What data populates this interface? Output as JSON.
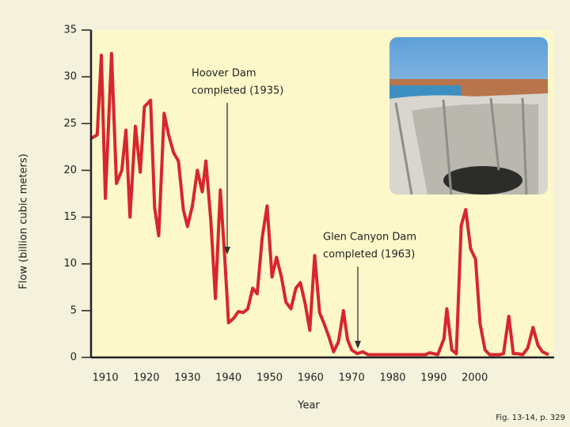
{
  "chart_data": {
    "type": "line",
    "y_label": "Flow (billion cubic meters)",
    "x_label": "Year",
    "source": "Fig. 13-14, p. 329",
    "annotations": [
      {
        "lines": [
          "Hoover Dam",
          "completed (1935)"
        ]
      },
      {
        "lines": [
          "Glen Canyon Dam",
          "completed (1963)"
        ]
      }
    ],
    "color": "#d7262e",
    "x": [
      1906.5,
      1908,
      1909,
      1910,
      1911.5,
      1912.7,
      1914,
      1915,
      1916,
      1917.3,
      1918.5,
      1919.5,
      1921,
      1922,
      1923,
      1924.3,
      1925.4,
      1926.6,
      1927.8,
      1929,
      1930,
      1931.2,
      1932.4,
      1933.6,
      1934.5,
      1935.7,
      1936.8,
      1938,
      1939,
      1940,
      1941.3,
      1942.4,
      1943.6,
      1944.7,
      1945.9,
      1947,
      1948.2,
      1949.4,
      1950.6,
      1951.7,
      1952.9,
      1954,
      1955.2,
      1956.4,
      1957.5,
      1958.7,
      1959.8,
      1961,
      1962.2,
      1963.3,
      1964.4,
      1965.6,
      1966.8,
      1968,
      1969,
      1970,
      1971.4,
      1972.7,
      1974,
      1980,
      1988,
      1989,
      1991,
      1992.5,
      1993.2,
      1994.4,
      1995.5,
      1996.7,
      1997.8,
      1999,
      2000.2,
      2001.3,
      2002.5,
      2003.6,
      2006,
      2007,
      2008.3,
      2009.4,
      2010.6,
      2011.7,
      2012.9,
      2014.2,
      2015.4,
      2016.5,
      2018
    ],
    "values": [
      23.4,
      23.8,
      32.3,
      17,
      32.5,
      18.6,
      20,
      24.3,
      15,
      24.7,
      19.8,
      26.8,
      27.5,
      16,
      13,
      26.1,
      23.8,
      21.9,
      21,
      15.8,
      14,
      16.2,
      20,
      17.7,
      21,
      14.5,
      6.3,
      17.9,
      11.2,
      3.7,
      4.2,
      4.9,
      4.8,
      5.2,
      7.4,
      6.8,
      12.8,
      16.2,
      8.6,
      10.7,
      8.6,
      5.9,
      5.2,
      7.4,
      8,
      5.7,
      2.9,
      10.9,
      4.8,
      3.6,
      2.3,
      0.6,
      1.7,
      5,
      1.9,
      0.8,
      0.4,
      0.6,
      0.3,
      0.3,
      0.3,
      0.5,
      0.3,
      2,
      5.2,
      0.8,
      0.4,
      14.1,
      15.8,
      11.6,
      10.5,
      3.6,
      0.8,
      0.3,
      0.3,
      0.4,
      4.4,
      0.4,
      0.4,
      0.3,
      1,
      3.2,
      1.3,
      0.6,
      0.3
    ],
    "xlim": [
      1906.5,
      2018
    ],
    "ylim": [
      0,
      35
    ],
    "xticks": [
      1910,
      1920,
      1930,
      1940,
      1950,
      1960,
      1970,
      1980,
      1990,
      2000
    ],
    "yticks": [
      0,
      5,
      10,
      15,
      20,
      25,
      30,
      35
    ]
  }
}
